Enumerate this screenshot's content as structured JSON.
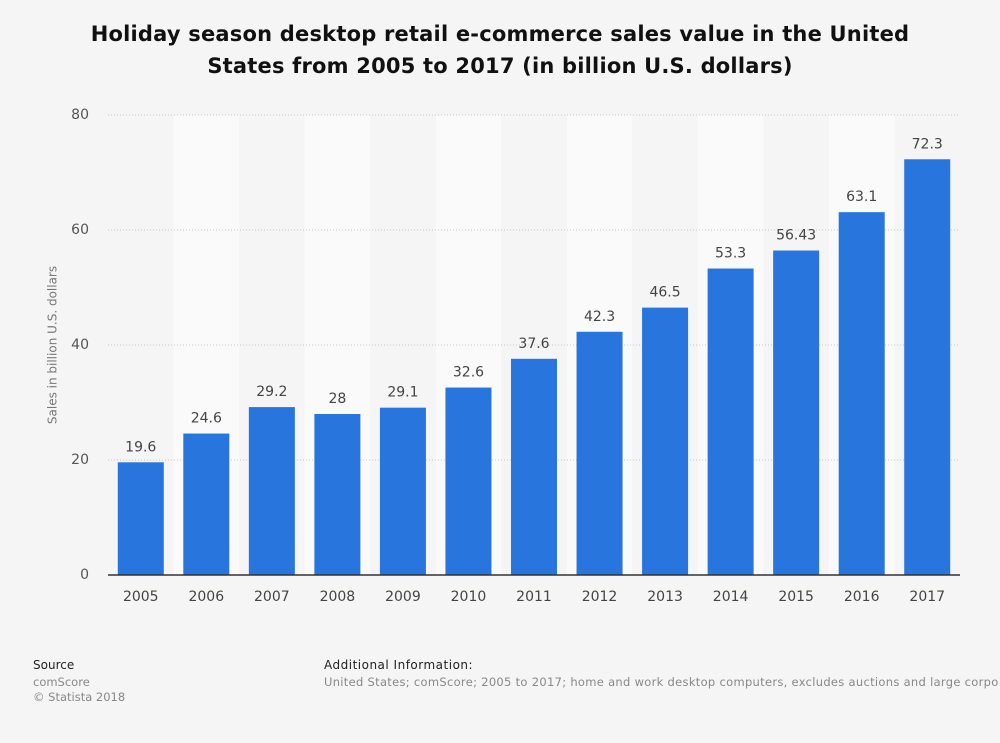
{
  "chart_data": {
    "type": "bar",
    "title": "Holiday season desktop retail e-commerce sales value in the United States from 2005 to 2017 (in billion U.S. dollars)",
    "y_label": "Sales in billion U.S. dollars",
    "categories": [
      "2005",
      "2006",
      "2007",
      "2008",
      "2009",
      "2010",
      "2011",
      "2012",
      "2013",
      "2014",
      "2015",
      "2016",
      "2017"
    ],
    "values": [
      19.6,
      24.6,
      29.2,
      28,
      29.1,
      32.6,
      37.6,
      42.3,
      46.5,
      53.3,
      56.43,
      63.1,
      72.3
    ],
    "color": "#2875dd",
    "ylim": [
      0,
      80
    ],
    "yticks": [
      0,
      20,
      40,
      60,
      80
    ],
    "grid": true
  },
  "footer": {
    "source_heading": "Source",
    "source": "comScore",
    "copyright": "© Statista 2018",
    "info_heading": "Additional Information:",
    "info": "United States; comScore; 2005 to 2017; home and work desktop computers, excludes auctions and large corpo"
  }
}
